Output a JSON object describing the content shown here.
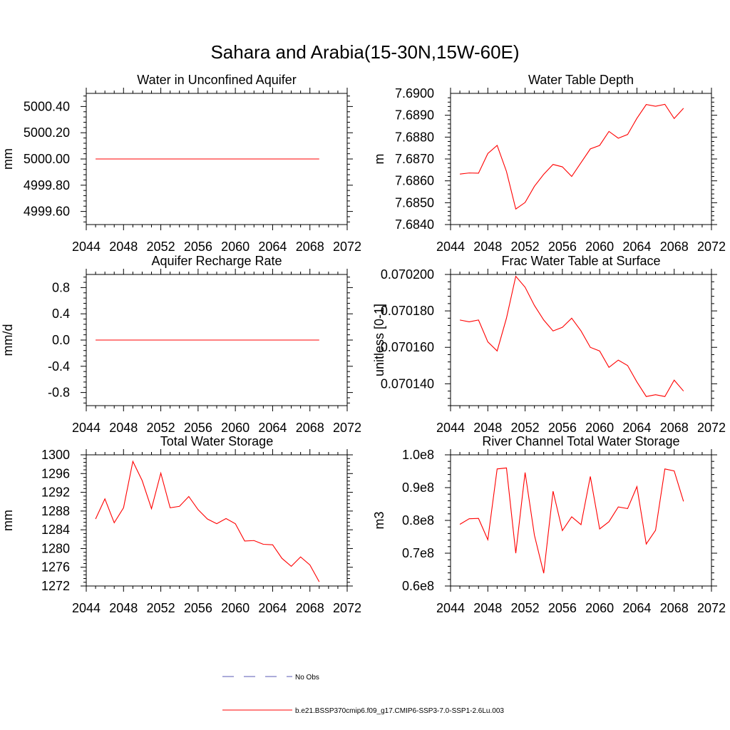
{
  "figure": {
    "title": "Sahara and Arabia(15-30N,15W-60E)"
  },
  "chart_data": [
    {
      "type": "line",
      "title": "Water in Unconfined Aquifer",
      "ylabel": "mm",
      "xlim": [
        2044,
        2072
      ],
      "xticks": [
        "2044",
        "2048",
        "2052",
        "2056",
        "2060",
        "2064",
        "2068",
        "2072"
      ],
      "ylim": [
        4999.5,
        5000.5
      ],
      "yticks": [
        "5000.40",
        "5000.20",
        "5000.00",
        "4999.80",
        "4999.60"
      ],
      "ytick_values": [
        5000.4,
        5000.2,
        5000.0,
        4999.8,
        4999.6
      ],
      "x": [
        2045,
        2046,
        2047,
        2048,
        2049,
        2050,
        2051,
        2052,
        2053,
        2054,
        2055,
        2056,
        2057,
        2058,
        2059,
        2060,
        2061,
        2062,
        2063,
        2064,
        2065,
        2066,
        2067,
        2068,
        2069
      ],
      "series": [
        {
          "color": "#ff0000",
          "values": [
            5000,
            5000,
            5000,
            5000,
            5000,
            5000,
            5000,
            5000,
            5000,
            5000,
            5000,
            5000,
            5000,
            5000,
            5000,
            5000,
            5000,
            5000,
            5000,
            5000,
            5000,
            5000,
            5000,
            5000,
            5000
          ]
        }
      ]
    },
    {
      "type": "line",
      "title": "Water Table Depth",
      "ylabel": "m",
      "xlim": [
        2044,
        2072
      ],
      "xticks": [
        "2044",
        "2048",
        "2052",
        "2056",
        "2060",
        "2064",
        "2068",
        "2072"
      ],
      "ylim": [
        7.684,
        7.69
      ],
      "yticks": [
        "7.6900",
        "7.6890",
        "7.6880",
        "7.6870",
        "7.6860",
        "7.6850",
        "7.6840"
      ],
      "ytick_values": [
        7.69,
        7.689,
        7.688,
        7.687,
        7.686,
        7.685,
        7.684
      ],
      "x": [
        2045,
        2046,
        2047,
        2048,
        2049,
        2050,
        2051,
        2052,
        2053,
        2054,
        2055,
        2056,
        2057,
        2058,
        2059,
        2060,
        2061,
        2062,
        2063,
        2064,
        2065,
        2066,
        2067,
        2068,
        2069
      ],
      "series": [
        {
          "color": "#ff0000",
          "values": [
            7.68631,
            7.68636,
            7.68635,
            7.68725,
            7.68762,
            7.68643,
            7.68471,
            7.68501,
            7.68575,
            7.6863,
            7.68675,
            7.68664,
            7.6862,
            7.68683,
            7.68746,
            7.68762,
            7.68826,
            7.68795,
            7.68812,
            7.68886,
            7.68949,
            7.68941,
            7.6895,
            7.68885,
            7.68932
          ]
        }
      ]
    },
    {
      "type": "line",
      "title": "Aquifer Recharge Rate",
      "ylabel": "mm/d",
      "xlim": [
        2044,
        2072
      ],
      "xticks": [
        "2044",
        "2048",
        "2052",
        "2056",
        "2060",
        "2064",
        "2068",
        "2072"
      ],
      "ylim": [
        -1.0,
        1.0
      ],
      "yticks": [
        "0.8",
        "0.4",
        "0.0",
        "-0.4",
        "-0.8"
      ],
      "ytick_values": [
        0.8,
        0.4,
        0.0,
        -0.4,
        -0.8
      ],
      "x": [
        2045,
        2046,
        2047,
        2048,
        2049,
        2050,
        2051,
        2052,
        2053,
        2054,
        2055,
        2056,
        2057,
        2058,
        2059,
        2060,
        2061,
        2062,
        2063,
        2064,
        2065,
        2066,
        2067,
        2068,
        2069
      ],
      "series": [
        {
          "color": "#ff0000",
          "values": [
            0,
            0,
            0,
            0,
            0,
            0,
            0,
            0,
            0,
            0,
            0,
            0,
            0,
            0,
            0,
            0,
            0,
            0,
            0,
            0,
            0,
            0,
            0,
            0,
            0
          ]
        }
      ]
    },
    {
      "type": "line",
      "title": "Frac Water Table at Surface",
      "ylabel": "unitless [0-1]",
      "xlim": [
        2044,
        2072
      ],
      "xticks": [
        "2044",
        "2048",
        "2052",
        "2056",
        "2060",
        "2064",
        "2068",
        "2072"
      ],
      "ylim": [
        0.070128,
        0.0702
      ],
      "yticks": [
        "0.070200",
        "0.070180",
        "0.070160",
        "0.070140"
      ],
      "ytick_values": [
        0.0702,
        0.07018,
        0.07016,
        0.07014
      ],
      "x": [
        2045,
        2046,
        2047,
        2048,
        2049,
        2050,
        2051,
        2052,
        2053,
        2054,
        2055,
        2056,
        2057,
        2058,
        2059,
        2060,
        2061,
        2062,
        2063,
        2064,
        2065,
        2066,
        2067,
        2068,
        2069
      ],
      "series": [
        {
          "color": "#ff0000",
          "values": [
            0.070175,
            0.070174,
            0.070175,
            0.070163,
            0.070158,
            0.070176,
            0.070199,
            0.070193,
            0.070183,
            0.070175,
            0.070169,
            0.070171,
            0.070176,
            0.070169,
            0.07016,
            0.070158,
            0.070149,
            0.070153,
            0.07015,
            0.070141,
            0.070133,
            0.070134,
            0.070133,
            0.070142,
            0.070136
          ]
        }
      ]
    },
    {
      "type": "line",
      "title": "Total Water Storage",
      "ylabel": "mm",
      "xlim": [
        2044,
        2072
      ],
      "xticks": [
        "2044",
        "2048",
        "2052",
        "2056",
        "2060",
        "2064",
        "2068",
        "2072"
      ],
      "ylim": [
        1272,
        1300
      ],
      "yticks": [
        "1300",
        "1296",
        "1292",
        "1288",
        "1284",
        "1280",
        "1276",
        "1272"
      ],
      "ytick_values": [
        1300,
        1296,
        1292,
        1288,
        1284,
        1280,
        1276,
        1272
      ],
      "x": [
        2045,
        2046,
        2047,
        2048,
        2049,
        2050,
        2051,
        2052,
        2053,
        2054,
        2055,
        2056,
        2057,
        2058,
        2059,
        2060,
        2061,
        2062,
        2063,
        2064,
        2065,
        2066,
        2067,
        2068,
        2069
      ],
      "series": [
        {
          "color": "#ff0000",
          "values": [
            1286.3,
            1290.6,
            1285.5,
            1288.7,
            1298.6,
            1294.5,
            1288.5,
            1296.1,
            1288.7,
            1289.0,
            1291.1,
            1288.3,
            1286.3,
            1285.3,
            1286.4,
            1285.3,
            1281.6,
            1281.7,
            1280.9,
            1280.8,
            1277.9,
            1276.2,
            1278.2,
            1276.5,
            1272.9
          ]
        }
      ]
    },
    {
      "type": "line",
      "title": "River Channel Total Water Storage",
      "ylabel": "m3",
      "xlim": [
        2044,
        2072
      ],
      "xticks": [
        "2044",
        "2048",
        "2052",
        "2056",
        "2060",
        "2064",
        "2068",
        "2072"
      ],
      "ylim": [
        60000000,
        100000000
      ],
      "yticks": [
        "1.0e8",
        "0.9e8",
        "0.8e8",
        "0.7e8",
        "0.6e8"
      ],
      "ytick_values": [
        100000000,
        90000000,
        80000000,
        70000000,
        60000000
      ],
      "x": [
        2045,
        2046,
        2047,
        2048,
        2049,
        2050,
        2051,
        2052,
        2053,
        2054,
        2055,
        2056,
        2057,
        2058,
        2059,
        2060,
        2061,
        2062,
        2063,
        2064,
        2065,
        2066,
        2067,
        2068,
        2069
      ],
      "series": [
        {
          "color": "#ff0000",
          "values": [
            78800000,
            80500000,
            80600000,
            74100000,
            95700000,
            96000000,
            70000000,
            94600000,
            75500000,
            63900000,
            88900000,
            76900000,
            81100000,
            78700000,
            93400000,
            77400000,
            79600000,
            84100000,
            83600000,
            90300000,
            72800000,
            77000000,
            95700000,
            95100000,
            85800000
          ]
        }
      ]
    }
  ],
  "legend": {
    "entries": [
      {
        "label": "No Obs",
        "color": "#5a5ab4",
        "dash": "dashed"
      },
      {
        "label": "b.e21.BSSP370cmip6.f09_g17.CMIP6-SSP3-7.0-SSP1-2.6Lu.003",
        "color": "#ff0000",
        "dash": "solid"
      }
    ]
  }
}
